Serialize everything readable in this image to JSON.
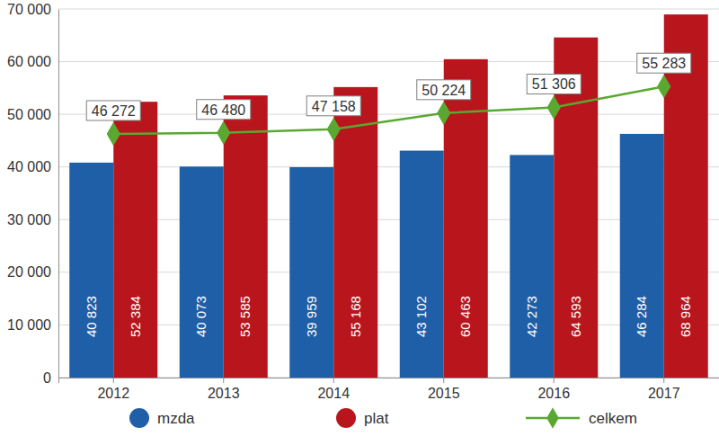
{
  "chart_data": {
    "type": "bar",
    "categories": [
      "2012",
      "2013",
      "2014",
      "2015",
      "2016",
      "2017"
    ],
    "series": [
      {
        "name": "mzda",
        "color": "#1f5fa8",
        "values": [
          40823,
          40073,
          39959,
          43102,
          42273,
          46284
        ],
        "value_labels": [
          "40 823",
          "40 073",
          "39 959",
          "43 102",
          "42 273",
          "46 284"
        ]
      },
      {
        "name": "plat",
        "color": "#b8161c",
        "values": [
          52384,
          53585,
          55168,
          60463,
          64593,
          68964
        ],
        "value_labels": [
          "52 384",
          "53 585",
          "55 168",
          "60 463",
          "64 593",
          "68 964"
        ]
      },
      {
        "name": "celkem",
        "type": "line",
        "color": "#5aa832",
        "marker": "diamond",
        "values": [
          46272,
          46480,
          47158,
          50224,
          51306,
          55283
        ],
        "value_labels": [
          "46 272",
          "46 480",
          "47 158",
          "50 224",
          "51 306",
          "55 283"
        ]
      }
    ],
    "ylim": [
      0,
      70000
    ],
    "yticks": [
      0,
      {
        "value": 10000,
        "label": "10 000"
      },
      {
        "value": 20000,
        "label": "20 000"
      },
      {
        "value": 30000,
        "label": "30 000"
      },
      {
        "value": 40000,
        "label": "40 000"
      },
      {
        "value": 50000,
        "label": "50 000"
      },
      {
        "value": 60000,
        "label": "60 000"
      },
      {
        "value": 70000,
        "label": "70 000"
      }
    ],
    "grid": true,
    "data_labels": true,
    "legend": "bottom"
  }
}
